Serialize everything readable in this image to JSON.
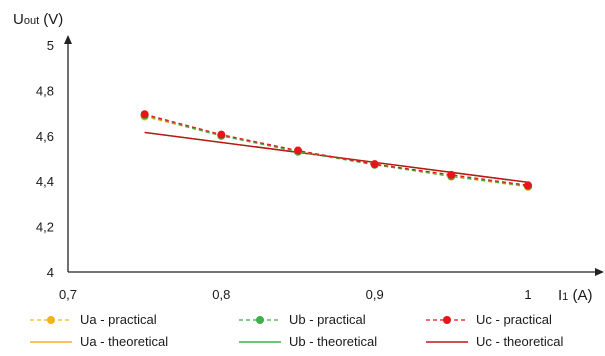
{
  "chart_data": {
    "type": "line",
    "title": "",
    "ylabel_main": "U",
    "ylabel_sub": "out",
    "ylabel_unit": " (V)",
    "xlabel_main": "I",
    "xlabel_sub": "1",
    "xlabel_unit": " (A)",
    "xlim": [
      0.7,
      1.0
    ],
    "ylim": [
      4.0,
      5.0
    ],
    "xticks": [
      "0,7",
      "0,8",
      "0,9",
      "1"
    ],
    "xtick_values": [
      0.7,
      0.8,
      0.9,
      1.0
    ],
    "yticks": [
      "4",
      "4,2",
      "4,4",
      "4,6",
      "4,8",
      "5"
    ],
    "ytick_values": [
      4.0,
      4.2,
      4.4,
      4.6,
      4.8,
      5.0
    ],
    "grid": false,
    "legend_position": "bottom",
    "series": [
      {
        "name": "Ua - practical",
        "style": "dashed-marker",
        "color": "#f2b41c",
        "x": [
          0.75,
          0.8,
          0.85,
          0.9,
          0.95,
          1.0
        ],
        "y": [
          4.685,
          4.6,
          4.53,
          4.475,
          4.42,
          4.375
        ]
      },
      {
        "name": "Ub - practical",
        "style": "dashed-marker",
        "color": "#3cb04a",
        "x": [
          0.75,
          0.8,
          0.85,
          0.9,
          0.95,
          1.0
        ],
        "y": [
          4.69,
          4.6,
          4.53,
          4.472,
          4.422,
          4.378
        ]
      },
      {
        "name": "Uc - practical",
        "style": "dashed-marker",
        "color": "#e8141c",
        "x": [
          0.75,
          0.8,
          0.85,
          0.9,
          0.95,
          1.0
        ],
        "y": [
          4.695,
          4.605,
          4.535,
          4.475,
          4.428,
          4.382
        ]
      },
      {
        "name": "Ua - theoretical",
        "style": "solid",
        "color": "#f2b41c",
        "x": [
          0.75,
          1.0
        ],
        "y": [
          4.615,
          4.395
        ]
      },
      {
        "name": "Ub - theoretical",
        "style": "solid",
        "color": "#3cb04a",
        "x": [
          0.75,
          1.0
        ],
        "y": [
          4.615,
          4.395
        ]
      },
      {
        "name": "Uc - theoretical",
        "style": "solid",
        "color": "#c0141c",
        "x": [
          0.75,
          1.0
        ],
        "y": [
          4.615,
          4.395
        ]
      }
    ]
  }
}
